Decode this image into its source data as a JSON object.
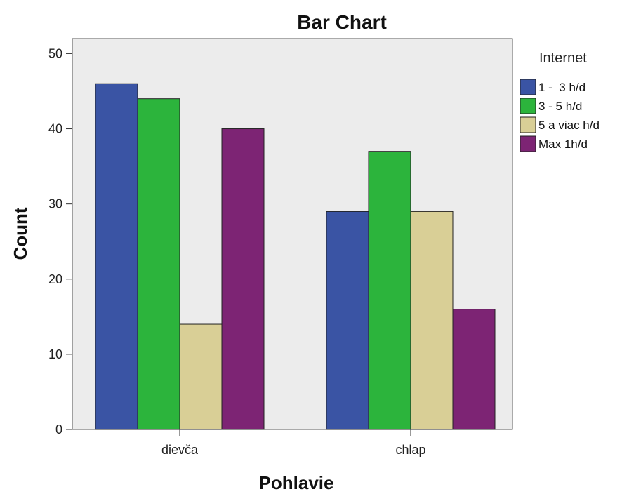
{
  "chart_data": {
    "type": "bar",
    "title": "Bar Chart",
    "xlabel": "Pohlavie",
    "ylabel": "Count",
    "categories": [
      "dievča",
      "chlap"
    ],
    "series": [
      {
        "name": "1 -  3 h/d",
        "color": "#3a54a4",
        "values": [
          46,
          29
        ]
      },
      {
        "name": "3 - 5 h/d",
        "color": "#2cb43c",
        "values": [
          44,
          37
        ]
      },
      {
        "name": "5 a viac h/d",
        "color": "#d9cf96",
        "values": [
          14,
          29
        ]
      },
      {
        "name": "Max 1h/d",
        "color": "#7d2474",
        "values": [
          40,
          16
        ]
      }
    ],
    "ylim": [
      0,
      52
    ],
    "yticks": [
      0,
      10,
      20,
      30,
      40,
      50
    ],
    "legend": {
      "title": "Internet",
      "position": "right"
    },
    "plot_background": "#ececec",
    "grid": false
  }
}
